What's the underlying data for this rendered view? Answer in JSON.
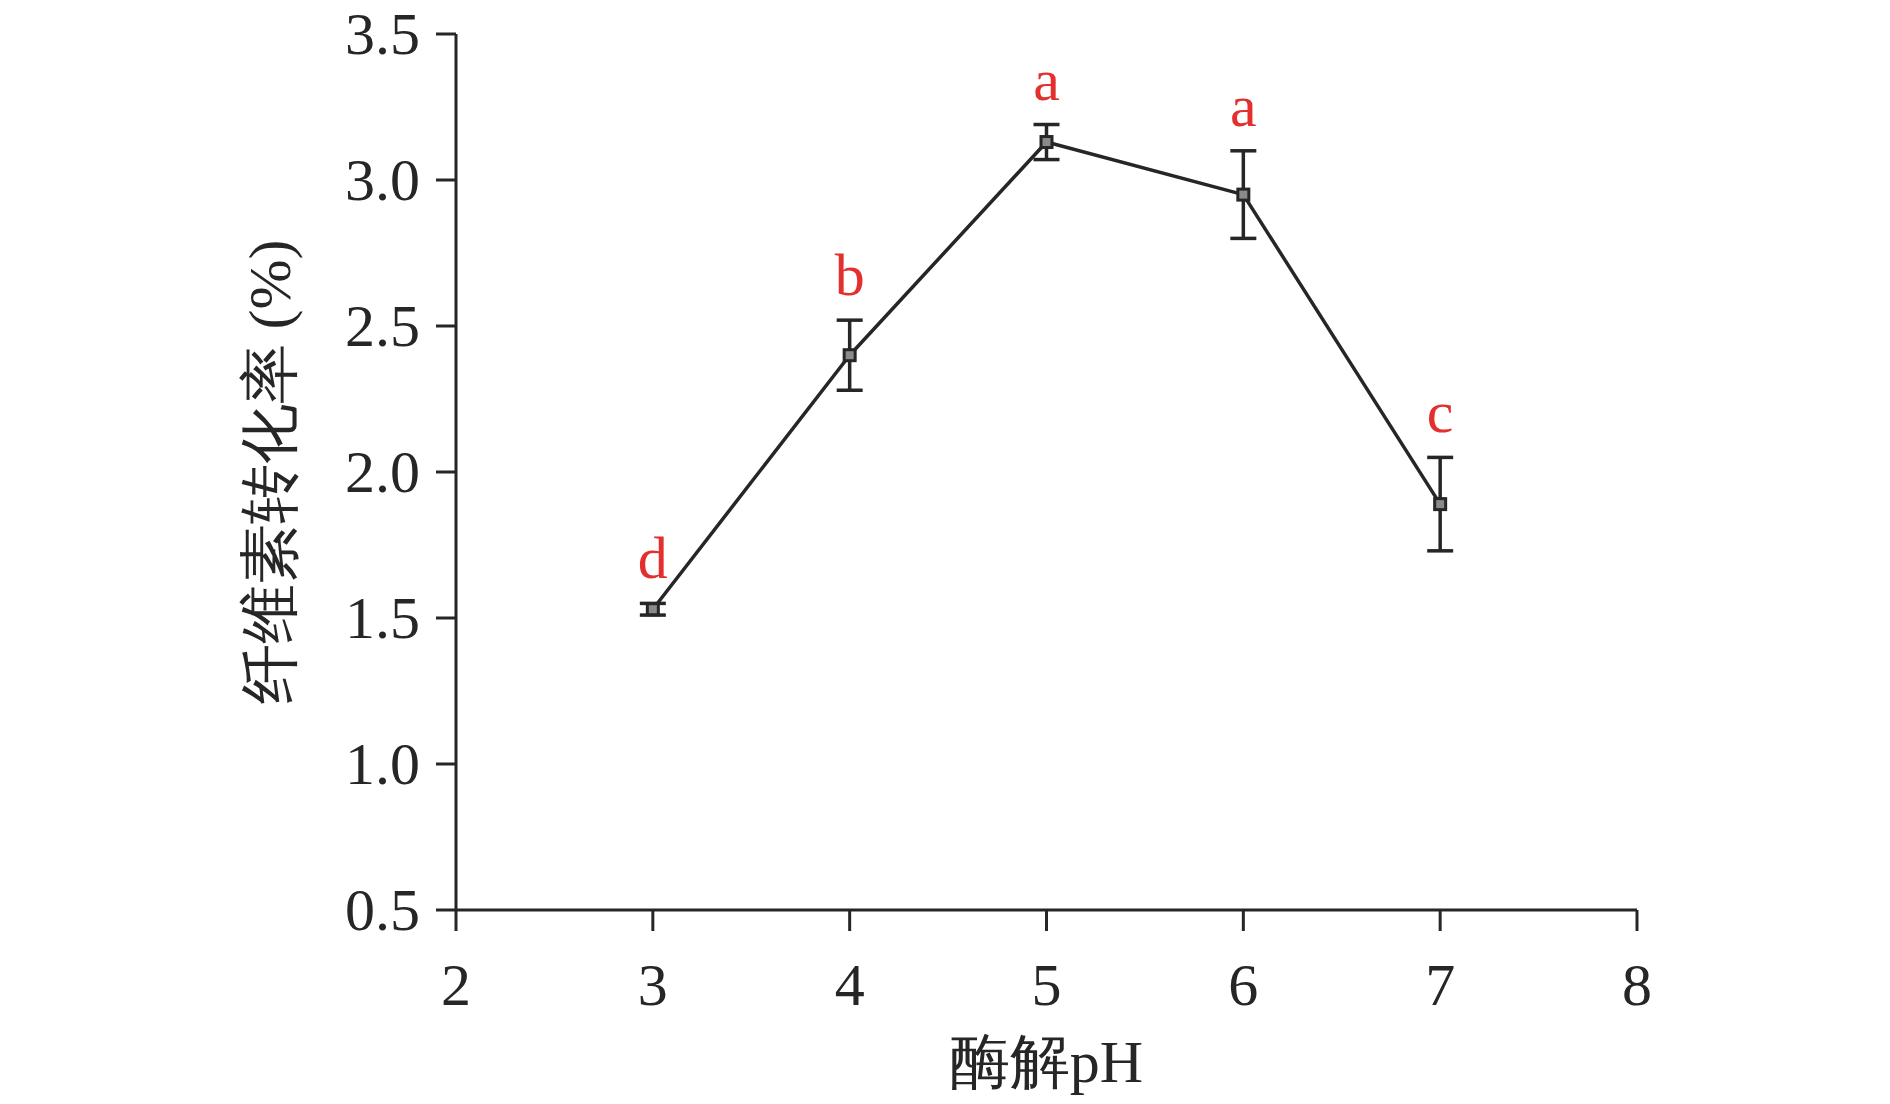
{
  "chart_data": {
    "type": "line",
    "xlabel": "酶解pH",
    "ylabel": "纤维素转化率 (%)",
    "x": [
      3,
      4,
      5,
      6,
      7
    ],
    "series": [
      {
        "color": "#262626",
        "values": [
          1.53,
          2.4,
          3.13,
          2.95,
          1.89
        ],
        "errors": [
          0.02,
          0.12,
          0.06,
          0.15,
          0.16
        ]
      }
    ],
    "xlim": [
      2,
      8
    ],
    "xticks": [
      2,
      3,
      4,
      5,
      6,
      7,
      8
    ],
    "ylim": [
      0.5,
      3.5
    ],
    "yticks": [
      0.5,
      {
        "value": 1,
        "label": "1.0"
      },
      1.5,
      {
        "value": 2,
        "label": "2.0"
      },
      2.5,
      {
        "value": 3,
        "label": "3.0"
      },
      3.5
    ],
    "marker": "square",
    "annotations": [
      {
        "text": "d",
        "x": 3,
        "y": 1.53
      },
      {
        "text": "b",
        "x": 4,
        "y": 2.4
      },
      {
        "text": "a",
        "x": 5,
        "y": 3.13
      },
      {
        "text": "a",
        "x": 6,
        "y": 2.95
      },
      {
        "text": "c",
        "x": 7,
        "y": 1.89
      }
    ]
  }
}
